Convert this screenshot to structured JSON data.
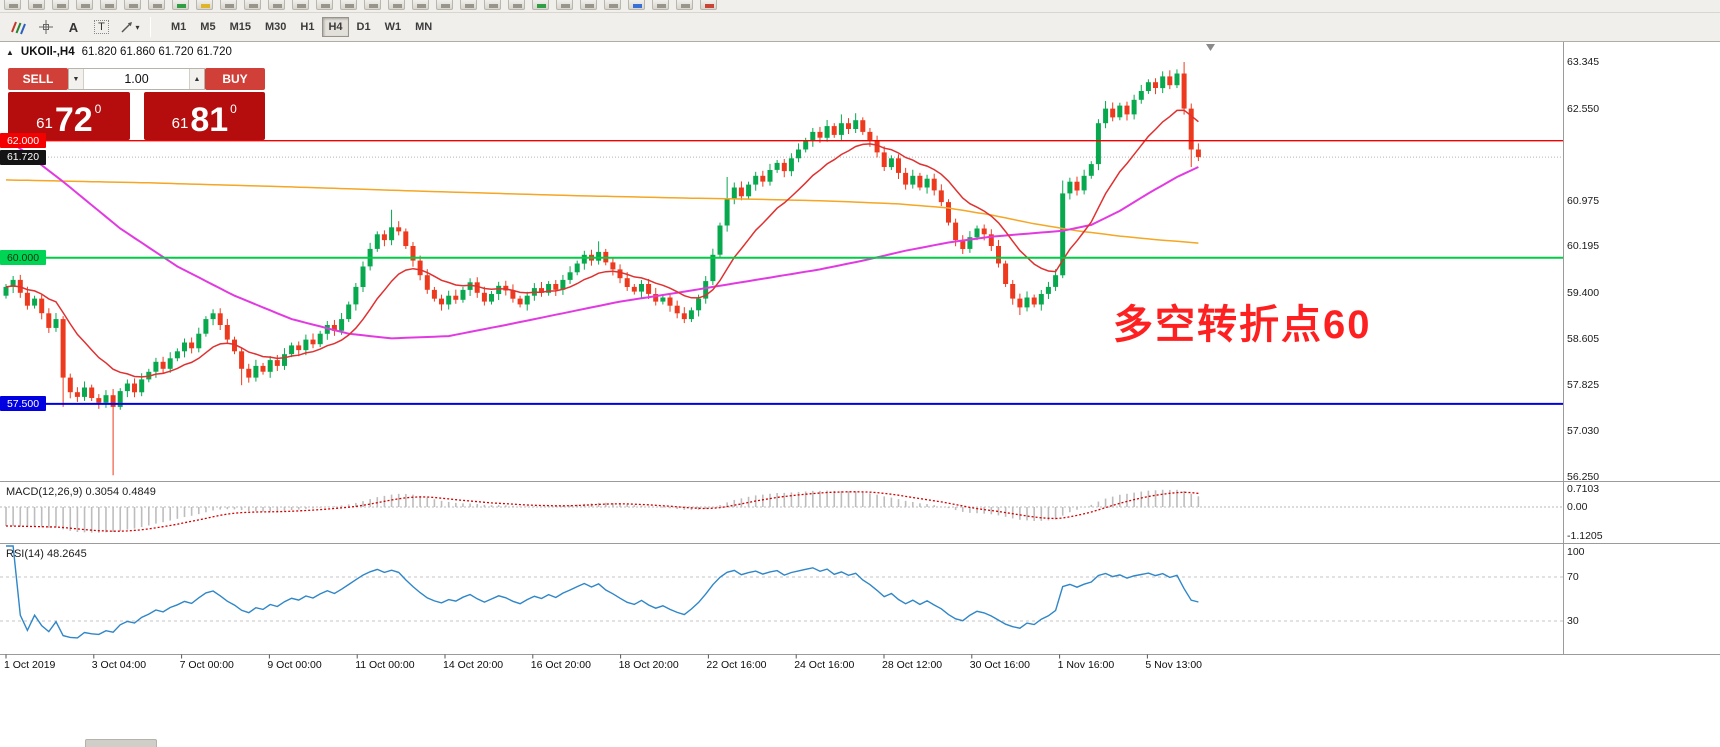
{
  "toolbar_top": {
    "icons": [
      "new-chart",
      "profiles",
      "market-watch",
      "data-window",
      "navigator",
      "terminal",
      "strategy-tester",
      "new-order",
      "metaeditor",
      "autotrading",
      "full-screen",
      "print-preview",
      "help",
      "bar-chart",
      "candlestick-chart",
      "line-chart",
      "zoom-in",
      "zoom-out",
      "tile-windows",
      "cascade-windows",
      "auto-scroll",
      "chart-shift",
      "indicators",
      "period-up",
      "period-down",
      "templates",
      "crosshair",
      "draw-line",
      "text-label",
      "expert-advisors"
    ]
  },
  "toolbar": {
    "tools": [
      "crayons-tool",
      "crosshair-tool",
      "text-tool",
      "label-tool",
      "shapes-tool"
    ],
    "timeframes": [
      "M1",
      "M5",
      "M15",
      "M30",
      "H1",
      "H4",
      "D1",
      "W1",
      "MN"
    ],
    "active_timeframe": "H4"
  },
  "chart": {
    "symbol_info": {
      "symbol": "UKOIl-,H4",
      "ohlc": [
        "61.820",
        "61.860",
        "61.720",
        "61.720"
      ]
    },
    "trade_panel": {
      "sell_label": "SELL",
      "buy_label": "BUY",
      "volume": "1.00",
      "sell_price": {
        "small": "61",
        "big": "72",
        "sup": "0"
      },
      "buy_price": {
        "small": "61",
        "big": "81",
        "sup": "0"
      }
    },
    "annotation": "多空转折点60",
    "current_price": "61.720",
    "price_axis": {
      "labels": [
        {
          "text": "63.345",
          "value": 63.345
        },
        {
          "text": "62.550",
          "value": 62.55
        },
        {
          "text": "60.975",
          "value": 60.975
        },
        {
          "text": "60.195",
          "value": 60.195
        },
        {
          "text": "59.400",
          "value": 59.4
        },
        {
          "text": "58.605",
          "value": 58.605
        },
        {
          "text": "57.825",
          "value": 57.825
        },
        {
          "text": "57.030",
          "value": 57.03
        },
        {
          "text": "56.250",
          "value": 56.25
        }
      ],
      "badges": [
        {
          "name": "resistance-level-badge",
          "text": "62.000",
          "value": 62.0,
          "bg": "#f40000",
          "fg": "#ffffff"
        },
        {
          "name": "current-bid-badge",
          "text": "61.720",
          "value": 61.72,
          "bg": "#141414",
          "fg": "#ffffff"
        },
        {
          "name": "pivot-level-badge",
          "text": "60.000",
          "value": 60.0,
          "bg": "#00d455",
          "fg": "#06350f"
        },
        {
          "name": "support-level-badge",
          "text": "57.500",
          "value": 57.5,
          "bg": "#0000e0",
          "fg": "#ffffff"
        }
      ]
    },
    "hlines": [
      {
        "name": "resistance-line",
        "value": 62.0,
        "color": "#f40000",
        "width": 1.4
      },
      {
        "name": "pivot-line",
        "value": 60.0,
        "color": "#00cc44",
        "width": 2
      },
      {
        "name": "support-line",
        "value": 57.5,
        "color": "#0000e6",
        "width": 2
      }
    ]
  },
  "chart_data": {
    "type": "candlestick",
    "symbol": "UKOIl-",
    "timeframe": "H4",
    "first_open": 59.35,
    "closes": [
      59.5,
      59.62,
      59.4,
      59.18,
      59.3,
      59.05,
      58.8,
      58.95,
      57.95,
      57.7,
      57.62,
      57.78,
      57.6,
      57.52,
      57.65,
      57.45,
      57.72,
      57.85,
      57.7,
      57.92,
      58.05,
      58.22,
      58.1,
      58.28,
      58.4,
      58.55,
      58.45,
      58.7,
      58.95,
      59.05,
      58.85,
      58.6,
      58.4,
      58.1,
      57.95,
      58.15,
      58.05,
      58.25,
      58.15,
      58.35,
      58.5,
      58.42,
      58.6,
      58.52,
      58.7,
      58.85,
      58.75,
      58.95,
      59.2,
      59.5,
      59.85,
      60.15,
      60.4,
      60.3,
      60.52,
      60.45,
      60.2,
      59.95,
      59.7,
      59.45,
      59.3,
      59.2,
      59.35,
      59.28,
      59.45,
      59.58,
      59.4,
      59.25,
      59.38,
      59.52,
      59.44,
      59.3,
      59.2,
      59.35,
      59.48,
      59.4,
      59.55,
      59.45,
      59.62,
      59.75,
      59.9,
      60.05,
      59.95,
      60.1,
      59.92,
      59.8,
      59.65,
      59.5,
      59.42,
      59.55,
      59.38,
      59.25,
      59.32,
      59.18,
      59.05,
      58.95,
      59.1,
      59.3,
      59.6,
      60.05,
      60.55,
      61.0,
      61.2,
      61.05,
      61.25,
      61.4,
      61.3,
      61.5,
      61.62,
      61.48,
      61.7,
      61.85,
      62.0,
      62.15,
      62.05,
      62.25,
      62.1,
      62.3,
      62.2,
      62.35,
      62.15,
      62.0,
      61.8,
      61.55,
      61.7,
      61.45,
      61.25,
      61.4,
      61.2,
      61.35,
      61.15,
      60.95,
      60.6,
      60.3,
      60.15,
      60.35,
      60.5,
      60.4,
      60.2,
      59.9,
      59.55,
      59.3,
      59.15,
      59.32,
      59.2,
      59.38,
      59.5,
      59.7,
      61.1,
      61.3,
      61.15,
      61.4,
      61.6,
      62.3,
      62.55,
      62.4,
      62.6,
      62.45,
      62.7,
      62.85,
      63.0,
      62.9,
      63.1,
      62.95,
      63.15,
      62.55,
      61.85,
      61.72
    ],
    "high_overrides": {
      "54": 60.82,
      "83": 60.28,
      "101": 61.38,
      "117": 62.45,
      "119": 62.47,
      "148": 61.32,
      "154": 62.68,
      "164": 63.22,
      "165": 63.345
    },
    "low_overrides": {
      "8": 57.45,
      "15": 56.28,
      "33": 57.82,
      "142": 59.02,
      "166": 61.55
    },
    "ma_lines": [
      {
        "name": "ma-slow",
        "color": "#f5a623",
        "width": 1.5,
        "anchors": [
          [
            0,
            61.33
          ],
          [
            20,
            61.28
          ],
          [
            40,
            61.21
          ],
          [
            60,
            61.13
          ],
          [
            80,
            61.06
          ],
          [
            95,
            61.02
          ],
          [
            105,
            61.0
          ],
          [
            115,
            60.97
          ],
          [
            125,
            60.92
          ],
          [
            132,
            60.85
          ],
          [
            138,
            60.73
          ],
          [
            144,
            60.58
          ],
          [
            150,
            60.46
          ],
          [
            156,
            60.37
          ],
          [
            161,
            60.31
          ],
          [
            167,
            60.25
          ]
        ]
      },
      {
        "name": "ma-medium",
        "color": "#e23ae2",
        "width": 2,
        "anchors": [
          [
            0,
            62.05
          ],
          [
            8,
            61.3
          ],
          [
            16,
            60.5
          ],
          [
            24,
            59.85
          ],
          [
            32,
            59.35
          ],
          [
            40,
            58.95
          ],
          [
            48,
            58.7
          ],
          [
            54,
            58.62
          ],
          [
            62,
            58.66
          ],
          [
            70,
            58.85
          ],
          [
            78,
            59.05
          ],
          [
            86,
            59.25
          ],
          [
            94,
            59.4
          ],
          [
            100,
            59.52
          ],
          [
            108,
            59.68
          ],
          [
            114,
            59.8
          ],
          [
            120,
            59.95
          ],
          [
            126,
            60.12
          ],
          [
            132,
            60.26
          ],
          [
            138,
            60.36
          ],
          [
            144,
            60.42
          ],
          [
            148,
            60.46
          ],
          [
            152,
            60.56
          ],
          [
            156,
            60.8
          ],
          [
            160,
            61.1
          ],
          [
            164,
            61.38
          ],
          [
            167,
            61.55
          ]
        ]
      },
      {
        "name": "ma-fast",
        "color": "#e03030",
        "width": 1.5,
        "period": 13
      }
    ],
    "macd_seed": {
      "ema12": 60.55,
      "ema26": 61.25
    },
    "candle_colors": {
      "up": "#07a84e",
      "down": "#ed3a1e"
    }
  },
  "macd": {
    "title": "MACD(12,26,9)",
    "values": [
      "0.3054",
      "0.4849"
    ],
    "axis": [
      {
        "text": "0.7103",
        "value": 0.7103
      },
      {
        "text": "0.00",
        "value": 0
      },
      {
        "text": "-1.1205",
        "value": -1.1205
      }
    ]
  },
  "rsi": {
    "title": "RSI(14)",
    "value": "48.2645",
    "axis": [
      {
        "text": "100",
        "value": 100
      },
      {
        "text": "70",
        "value": 70
      },
      {
        "text": "30",
        "value": 30
      }
    ],
    "levels": [
      70,
      30
    ],
    "color": "#2f86c8"
  },
  "time_axis": [
    "1 Oct 2019",
    "3 Oct 04:00",
    "7 Oct 00:00",
    "9 Oct 00:00",
    "11 Oct 00:00",
    "14 Oct 20:00",
    "16 Oct 20:00",
    "18 Oct 20:00",
    "22 Oct 16:00",
    "24 Oct 16:00",
    "28 Oct 12:00",
    "30 Oct 16:00",
    "1 Nov 16:00",
    "5 Nov 13:00"
  ]
}
